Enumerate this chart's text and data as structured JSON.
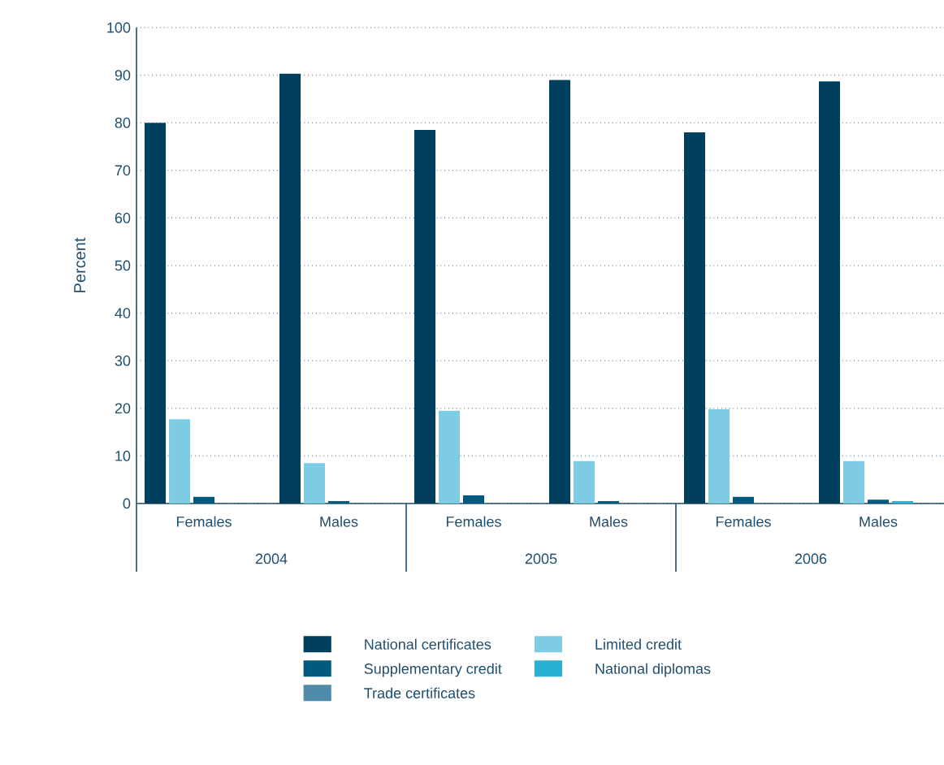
{
  "chart_data": {
    "type": "bar",
    "ylabel": "Percent",
    "categories": [
      "Females",
      "Males",
      "Females",
      "Males",
      "Females",
      "Males"
    ],
    "annotations": [
      "2004",
      "2005",
      "2006"
    ],
    "ylim": [
      0,
      100
    ],
    "yticks": [
      0,
      10,
      20,
      30,
      40,
      50,
      60,
      70,
      80,
      90,
      100
    ],
    "grid": "y",
    "legend": "bottom",
    "series": [
      {
        "name": "National certificates",
        "color": "#00405e",
        "values": [
          80,
          90.3,
          78.5,
          89,
          78,
          88.7
        ]
      },
      {
        "name": "Limited credit",
        "color": "#7ecce3",
        "values": [
          17.7,
          8.5,
          19.5,
          8.9,
          19.8,
          8.9
        ]
      },
      {
        "name": "Supplementary credit",
        "color": "#005a80",
        "values": [
          1.4,
          0.5,
          1.7,
          0.5,
          1.4,
          0.8
        ]
      },
      {
        "name": "National diplomas",
        "color": "#2ab0d5",
        "values": [
          0,
          0,
          0,
          0,
          0,
          0.5
        ]
      },
      {
        "name": "Trade certificates",
        "color": "#4f8aa8",
        "values": [
          0,
          0,
          0,
          0,
          0,
          0
        ]
      }
    ]
  }
}
